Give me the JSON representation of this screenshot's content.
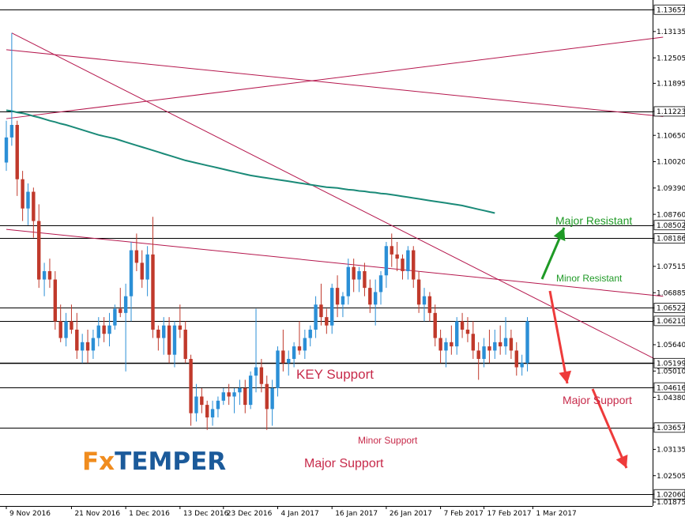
{
  "chart_data": {
    "type": "candlestick",
    "instrument": "EURUSD",
    "title": "",
    "xlabel": "",
    "ylabel": "",
    "ylim": [
      1.01875,
      1.137
    ],
    "price_ticks": [
      "1.13657",
      "1.13135",
      "1.12505",
      "1.11895",
      "1.11223",
      "1.10650",
      "1.10020",
      "1.09390",
      "1.08760",
      "1.08502",
      "1.08186",
      "1.07515",
      "1.06885",
      "1.06522",
      "1.06210",
      "1.05640",
      "1.05199",
      "1.05010",
      "1.04616",
      "1.04380",
      "1.03657",
      "1.03135",
      "1.02505",
      "1.02060",
      "1.01875"
    ],
    "price_tick_values": [
      1.13657,
      1.13135,
      1.12505,
      1.11895,
      1.11223,
      1.1065,
      1.1002,
      1.0939,
      1.0876,
      1.08502,
      1.08186,
      1.07515,
      1.06885,
      1.06522,
      1.0621,
      1.0564,
      1.05199,
      1.0501,
      1.04616,
      1.0438,
      1.03657,
      1.03135,
      1.02505,
      1.0206,
      1.01875
    ],
    "highlighted_levels": [
      1.13657,
      1.11223,
      1.08502,
      1.08186,
      1.06522,
      1.0621,
      1.05199,
      1.04616,
      1.03657,
      1.0206
    ],
    "x_ticks": [
      "9 Nov 2016",
      "21 Nov 2016",
      "1 Dec 2016",
      "13 Dec 2016",
      "23 Dec 2016",
      "4 Jan 2017",
      "16 Jan 2017",
      "26 Jan 2017",
      "7 Feb 2017",
      "17 Feb 2017",
      "1 Mar 2017"
    ],
    "x_tick_index": [
      0,
      12,
      22,
      32,
      40,
      50,
      60,
      70,
      80,
      88,
      97
    ],
    "candles": [
      [
        1.1,
        1.11,
        1.098,
        1.106
      ],
      [
        1.106,
        1.131,
        1.104,
        1.109
      ],
      [
        1.109,
        1.11,
        1.092,
        1.096
      ],
      [
        1.096,
        1.098,
        1.086,
        1.089
      ],
      [
        1.089,
        1.095,
        1.085,
        1.093
      ],
      [
        1.093,
        1.094,
        1.082,
        1.086
      ],
      [
        1.086,
        1.09,
        1.07,
        1.072
      ],
      [
        1.072,
        1.076,
        1.068,
        1.074
      ],
      [
        1.074,
        1.077,
        1.07,
        1.072
      ],
      [
        1.072,
        1.074,
        1.06,
        1.062
      ],
      [
        1.062,
        1.066,
        1.057,
        1.058
      ],
      [
        1.058,
        1.064,
        1.056,
        1.062
      ],
      [
        1.062,
        1.066,
        1.059,
        1.06
      ],
      [
        1.06,
        1.064,
        1.053,
        1.055
      ],
      [
        1.055,
        1.059,
        1.052,
        1.057
      ],
      [
        1.057,
        1.06,
        1.052,
        1.055
      ],
      [
        1.055,
        1.06,
        1.053,
        1.058
      ],
      [
        1.058,
        1.063,
        1.056,
        1.061
      ],
      [
        1.061,
        1.063,
        1.057,
        1.059
      ],
      [
        1.059,
        1.064,
        1.056,
        1.061
      ],
      [
        1.061,
        1.066,
        1.06,
        1.065
      ],
      [
        1.065,
        1.07,
        1.063,
        1.064
      ],
      [
        1.064,
        1.071,
        1.05,
        1.068
      ],
      [
        1.068,
        1.081,
        1.062,
        1.079
      ],
      [
        1.079,
        1.083,
        1.074,
        1.076
      ],
      [
        1.076,
        1.079,
        1.07,
        1.072
      ],
      [
        1.072,
        1.08,
        1.068,
        1.078
      ],
      [
        1.078,
        1.087,
        1.058,
        1.06
      ],
      [
        1.06,
        1.061,
        1.055,
        1.058
      ],
      [
        1.058,
        1.063,
        1.054,
        1.061
      ],
      [
        1.061,
        1.063,
        1.052,
        1.054
      ],
      [
        1.054,
        1.062,
        1.051,
        1.061
      ],
      [
        1.061,
        1.066,
        1.058,
        1.06
      ],
      [
        1.06,
        1.062,
        1.052,
        1.053
      ],
      [
        1.053,
        1.054,
        1.037,
        1.04
      ],
      [
        1.04,
        1.047,
        1.038,
        1.044
      ],
      [
        1.044,
        1.046,
        1.04,
        1.042
      ],
      [
        1.042,
        1.043,
        1.036,
        1.039
      ],
      [
        1.039,
        1.043,
        1.037,
        1.041
      ],
      [
        1.041,
        1.044,
        1.039,
        1.043
      ],
      [
        1.043,
        1.046,
        1.042,
        1.045
      ],
      [
        1.045,
        1.047,
        1.042,
        1.044
      ],
      [
        1.044,
        1.046,
        1.04,
        1.045
      ],
      [
        1.045,
        1.048,
        1.042,
        1.046
      ],
      [
        1.046,
        1.048,
        1.04,
        1.042
      ],
      [
        1.042,
        1.05,
        1.041,
        1.049
      ],
      [
        1.049,
        1.065,
        1.045,
        1.051
      ],
      [
        1.051,
        1.053,
        1.045,
        1.047
      ],
      [
        1.047,
        1.049,
        1.036,
        1.041
      ],
      [
        1.041,
        1.048,
        1.037,
        1.046
      ],
      [
        1.046,
        1.056,
        1.044,
        1.055
      ],
      [
        1.055,
        1.06,
        1.05,
        1.052
      ],
      [
        1.052,
        1.055,
        1.049,
        1.053
      ],
      [
        1.053,
        1.057,
        1.051,
        1.056
      ],
      [
        1.056,
        1.062,
        1.054,
        1.055
      ],
      [
        1.055,
        1.06,
        1.053,
        1.058
      ],
      [
        1.058,
        1.061,
        1.056,
        1.06
      ],
      [
        1.06,
        1.068,
        1.058,
        1.066
      ],
      [
        1.066,
        1.071,
        1.061,
        1.063
      ],
      [
        1.063,
        1.065,
        1.059,
        1.061
      ],
      [
        1.061,
        1.071,
        1.059,
        1.07
      ],
      [
        1.07,
        1.073,
        1.063,
        1.066
      ],
      [
        1.066,
        1.069,
        1.063,
        1.068
      ],
      [
        1.068,
        1.077,
        1.066,
        1.075
      ],
      [
        1.075,
        1.077,
        1.069,
        1.072
      ],
      [
        1.072,
        1.075,
        1.069,
        1.074
      ],
      [
        1.074,
        1.076,
        1.068,
        1.07
      ],
      [
        1.07,
        1.072,
        1.064,
        1.066
      ],
      [
        1.066,
        1.072,
        1.061,
        1.069
      ],
      [
        1.069,
        1.074,
        1.066,
        1.073
      ],
      [
        1.073,
        1.081,
        1.07,
        1.08
      ],
      [
        1.08,
        1.083,
        1.075,
        1.078
      ],
      [
        1.078,
        1.081,
        1.074,
        1.077
      ],
      [
        1.077,
        1.078,
        1.072,
        1.074
      ],
      [
        1.074,
        1.08,
        1.072,
        1.079
      ],
      [
        1.079,
        1.08,
        1.07,
        1.072
      ],
      [
        1.072,
        1.074,
        1.064,
        1.066
      ],
      [
        1.066,
        1.07,
        1.062,
        1.068
      ],
      [
        1.068,
        1.069,
        1.062,
        1.064
      ],
      [
        1.064,
        1.066,
        1.056,
        1.058
      ],
      [
        1.058,
        1.06,
        1.052,
        1.055
      ],
      [
        1.055,
        1.058,
        1.051,
        1.057
      ],
      [
        1.057,
        1.061,
        1.054,
        1.056
      ],
      [
        1.056,
        1.063,
        1.054,
        1.062
      ],
      [
        1.062,
        1.064,
        1.058,
        1.06
      ],
      [
        1.06,
        1.063,
        1.057,
        1.059
      ],
      [
        1.059,
        1.062,
        1.053,
        1.055
      ],
      [
        1.055,
        1.057,
        1.048,
        1.053
      ],
      [
        1.053,
        1.058,
        1.051,
        1.056
      ],
      [
        1.056,
        1.06,
        1.052,
        1.055
      ],
      [
        1.055,
        1.06,
        1.053,
        1.057
      ],
      [
        1.057,
        1.061,
        1.054,
        1.056
      ],
      [
        1.056,
        1.063,
        1.054,
        1.058
      ],
      [
        1.058,
        1.06,
        1.053,
        1.055
      ],
      [
        1.055,
        1.057,
        1.049,
        1.051
      ],
      [
        1.051,
        1.054,
        1.049,
        1.052
      ],
      [
        1.052,
        1.063,
        1.05,
        1.062
      ]
    ],
    "moving_average": {
      "color": "#1a8a78",
      "start_index": 0,
      "values": [
        1.1125,
        1.1123,
        1.112,
        1.1118,
        1.1115,
        1.1111,
        1.1108,
        1.1104,
        1.11,
        1.1097,
        1.1093,
        1.109,
        1.1086,
        1.1082,
        1.1078,
        1.1074,
        1.107,
        1.1066,
        1.1063,
        1.106,
        1.1057,
        1.1053,
        1.1049,
        1.1045,
        1.1041,
        1.1037,
        1.1033,
        1.1029,
        1.1025,
        1.1021,
        1.1017,
        1.1013,
        1.1009,
        1.1005,
        1.1002,
        1.0999,
        1.0996,
        1.0993,
        1.099,
        1.0987,
        1.0984,
        1.0981,
        1.0978,
        1.0975,
        1.0972,
        1.0969,
        1.0967,
        1.0965,
        1.0963,
        1.0961,
        1.0959,
        1.0957,
        1.0955,
        1.0953,
        1.0951,
        1.0949,
        1.0947,
        1.0945,
        1.0943,
        1.0941,
        1.094,
        1.0939,
        1.0937,
        1.0935,
        1.0934,
        1.0932,
        1.0931,
        1.0929,
        1.0928,
        1.0926,
        1.0925,
        1.0923,
        1.0921,
        1.0919,
        1.0917,
        1.0915,
        1.0913,
        1.0911,
        1.0909,
        1.0907,
        1.0905,
        1.0903,
        1.0901,
        1.0899,
        1.0897,
        1.0894,
        1.0891,
        1.0888,
        1.0885,
        1.0882,
        1.0879
      ]
    },
    "trendlines": [
      {
        "color": "#b5174d",
        "from": [
          0,
          1.1105
        ],
        "to": [
          121,
          1.13
        ]
      },
      {
        "color": "#b5174d",
        "from": [
          0,
          1.127
        ],
        "to": [
          121,
          1.111
        ]
      },
      {
        "color": "#b5174d",
        "from": [
          1,
          1.131
        ],
        "to": [
          121,
          1.052
        ]
      },
      {
        "color": "#b5174d",
        "from": [
          0,
          1.084
        ],
        "to": [
          121,
          1.068
        ]
      }
    ],
    "annotations": {
      "major_resistant": "Major Resistant",
      "minor_resistant": "Minor Resistant",
      "key_support": "KEY Support",
      "major_support_right": "Major Support",
      "minor_support": "Minor Support",
      "major_support_bottom": "Major Support"
    },
    "colors": {
      "bull": "#2b8fd6",
      "bear": "#c0392b",
      "trendline": "#b5174d",
      "green_arrow": "#1f9a26",
      "red_arrow": "#ee3b3b",
      "annotation_red": "#c72a4a",
      "annotation_green": "#1f9a26",
      "logo_fx": "#f08c1e",
      "logo_temper": "#1b5a9a"
    }
  },
  "logo": {
    "fx": "Fx",
    "temper": "TEMPER"
  }
}
